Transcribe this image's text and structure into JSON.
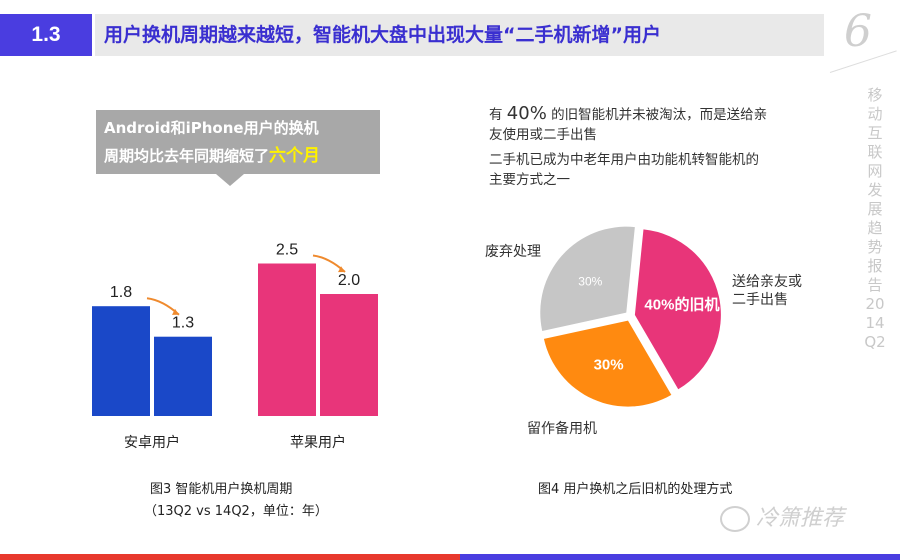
{
  "header": {
    "section_number": "1.3",
    "title": "用户换机周期越来越短，智能机大盘中出现大量“二手机新增”用户",
    "page_number": "6",
    "side_title": "移动互联网发展趋势报告 2014Q2"
  },
  "callout": {
    "line1": "Android和iPhone用户的换机",
    "line2_prefix": "周期均比去年同期缩短了",
    "line2_highlight": "六个月"
  },
  "colors": {
    "android_blue": "#1a48c8",
    "iphone_pink": "#e8357a",
    "pie_pink": "#e83579",
    "pie_orange": "#ff8a10",
    "pie_gray": "#c6c6c6",
    "arrow": "#ef8a2e"
  },
  "chart_data": [
    {
      "type": "bar",
      "title": "图3 智能机用户换机周期",
      "subtitle": "（13Q2 vs 14Q2，单位：年）",
      "categories": [
        "安卓用户",
        "苹果用户"
      ],
      "series": [
        {
          "name": "13Q2",
          "values": [
            1.8,
            2.5
          ],
          "labels": [
            "1.8",
            "2.5"
          ]
        },
        {
          "name": "14Q2",
          "values": [
            1.3,
            2.0
          ],
          "labels": [
            "1.3",
            "2.0"
          ]
        }
      ],
      "ylim": [
        0,
        3
      ]
    },
    {
      "type": "pie",
      "title": "图4 用户换机之后旧机的处理方式",
      "slices": [
        {
          "label": "送给亲友或二手出售",
          "label_line1": "送给亲友或",
          "label_line2": "二手出售",
          "value": 40,
          "value_label": "40%的旧机"
        },
        {
          "label": "留作备用机",
          "value": 30,
          "value_label": "30%"
        },
        {
          "label": "废弃处理",
          "value": 30,
          "value_label": "30%"
        }
      ]
    }
  ],
  "notes": {
    "line1_prefix": "有 ",
    "line1_big": "40%",
    "line1_suffix": " 的旧智能机并未被淘汰，而是送给亲",
    "line2": "友使用或二手出售",
    "line3": "二手机已成为中老年用户由功能机转智能机的",
    "line4": "主要方式之一"
  },
  "watermark": "冷箫推荐"
}
